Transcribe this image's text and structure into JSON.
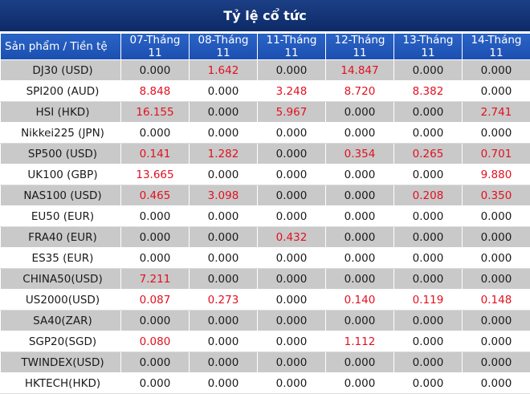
{
  "title": "Tỷ lệ cổ tức",
  "headers": [
    "Sản phẩm / Tiền tệ",
    "07-Tháng 11",
    "08-Tháng 11",
    "11-Tháng 11",
    "12-Tháng 11",
    "13-Tháng 11",
    "14-Tháng 11"
  ],
  "rows": [
    {
      "product": "DJ30 (USD)",
      "values": [
        "0.000",
        "1.642",
        "0.000",
        "14.847",
        "0.000",
        "0.000"
      ]
    },
    {
      "product": "SPI200 (AUD)",
      "values": [
        "8.848",
        "0.000",
        "3.248",
        "8.720",
        "8.382",
        "0.000"
      ]
    },
    {
      "product": "HSI (HKD)",
      "values": [
        "16.155",
        "0.000",
        "5.967",
        "0.000",
        "0.000",
        "2.741"
      ]
    },
    {
      "product": "Nikkei225 (JPN)",
      "values": [
        "0.000",
        "0.000",
        "0.000",
        "0.000",
        "0.000",
        "0.000"
      ]
    },
    {
      "product": "SP500 (USD)",
      "values": [
        "0.141",
        "1.282",
        "0.000",
        "0.354",
        "0.265",
        "0.701"
      ]
    },
    {
      "product": "UK100 (GBP)",
      "values": [
        "13.665",
        "0.000",
        "0.000",
        "0.000",
        "0.000",
        "9.880"
      ]
    },
    {
      "product": "NAS100 (USD)",
      "values": [
        "0.465",
        "3.098",
        "0.000",
        "0.000",
        "0.208",
        "0.350"
      ]
    },
    {
      "product": "EU50 (EUR)",
      "values": [
        "0.000",
        "0.000",
        "0.000",
        "0.000",
        "0.000",
        "0.000"
      ]
    },
    {
      "product": "FRA40 (EUR)",
      "values": [
        "0.000",
        "0.000",
        "0.432",
        "0.000",
        "0.000",
        "0.000"
      ]
    },
    {
      "product": "ES35 (EUR)",
      "values": [
        "0.000",
        "0.000",
        "0.000",
        "0.000",
        "0.000",
        "0.000"
      ]
    },
    {
      "product": "CHINA50(USD)",
      "values": [
        "7.211",
        "0.000",
        "0.000",
        "0.000",
        "0.000",
        "0.000"
      ]
    },
    {
      "product": "US2000(USD)",
      "values": [
        "0.087",
        "0.273",
        "0.000",
        "0.140",
        "0.119",
        "0.148"
      ]
    },
    {
      "product": "SA40(ZAR)",
      "values": [
        "0.000",
        "0.000",
        "0.000",
        "0.000",
        "0.000",
        "0.000"
      ]
    },
    {
      "product": "SGP20(SGD)",
      "values": [
        "0.080",
        "0.000",
        "0.000",
        "1.112",
        "0.000",
        "0.000"
      ]
    },
    {
      "product": "TWINDEX(USD)",
      "values": [
        "0.000",
        "0.000",
        "0.000",
        "0.000",
        "0.000",
        "0.000"
      ]
    },
    {
      "product": "HKTECH(HKD)",
      "values": [
        "0.000",
        "0.000",
        "0.000",
        "0.000",
        "0.000",
        "0.000"
      ]
    }
  ],
  "colors": {
    "header_bg": "#1a4fb0",
    "title_bg": "#0d2a66",
    "nonzero_text": "#e3101f",
    "stripe": "#c9c9c9"
  }
}
